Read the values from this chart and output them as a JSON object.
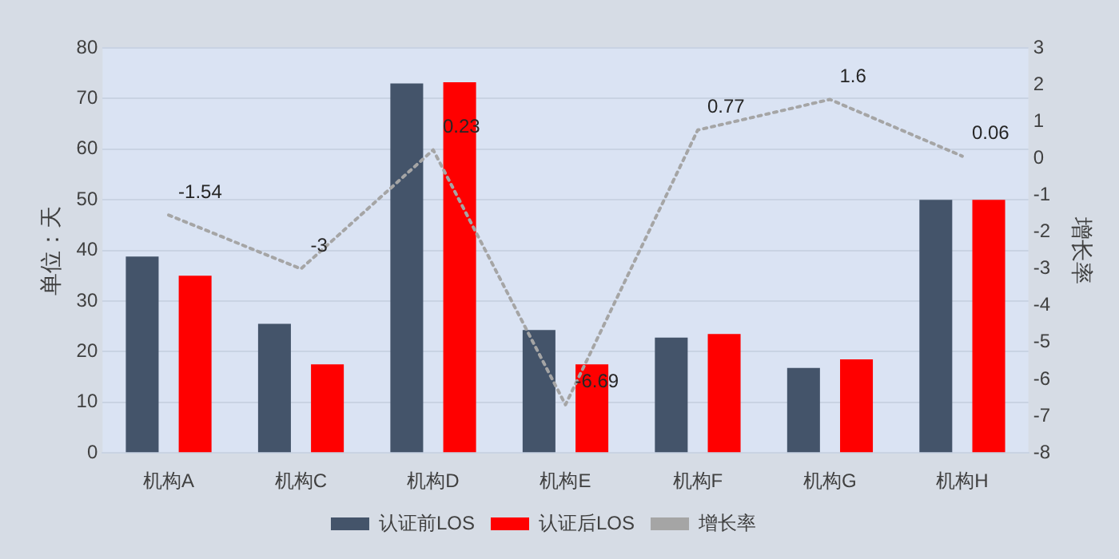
{
  "chart_data": {
    "type": "bar",
    "categories": [
      "机构A",
      "机构C",
      "机构D",
      "机构E",
      "机构F",
      "机构G",
      "机构H"
    ],
    "series": [
      {
        "name": "认证前LOS",
        "color": "#44546a",
        "values": [
          38.8,
          25.5,
          73,
          24.3,
          22.8,
          16.8,
          50
        ]
      },
      {
        "name": "认证后LOS",
        "color": "#ff0000",
        "values": [
          35,
          17.5,
          73.2,
          17.5,
          23.5,
          18.5,
          50
        ]
      },
      {
        "name": "增长率",
        "type": "line",
        "axis": "y2",
        "color": "#a5a5a5",
        "line_style": "dotted",
        "marker": "none",
        "values": [
          -1.54,
          -3,
          0.23,
          -6.69,
          0.77,
          1.6,
          0.06
        ],
        "value_labels": [
          "-1.54",
          "-3",
          "0.23",
          "-6.69",
          "0.77",
          "1.6",
          "0.06"
        ]
      }
    ],
    "ylabel": "单位：天",
    "y2label": "增长率",
    "ylim": [
      0,
      80
    ],
    "yticks": [
      0,
      10,
      20,
      30,
      40,
      50,
      60,
      70,
      80
    ],
    "y2lim": [
      -8,
      3
    ],
    "y2ticks": [
      -8,
      -7,
      -6,
      -5,
      -4,
      -3,
      -2,
      -1,
      0,
      1,
      2,
      3
    ],
    "grid": "y",
    "legend": "bottom"
  }
}
